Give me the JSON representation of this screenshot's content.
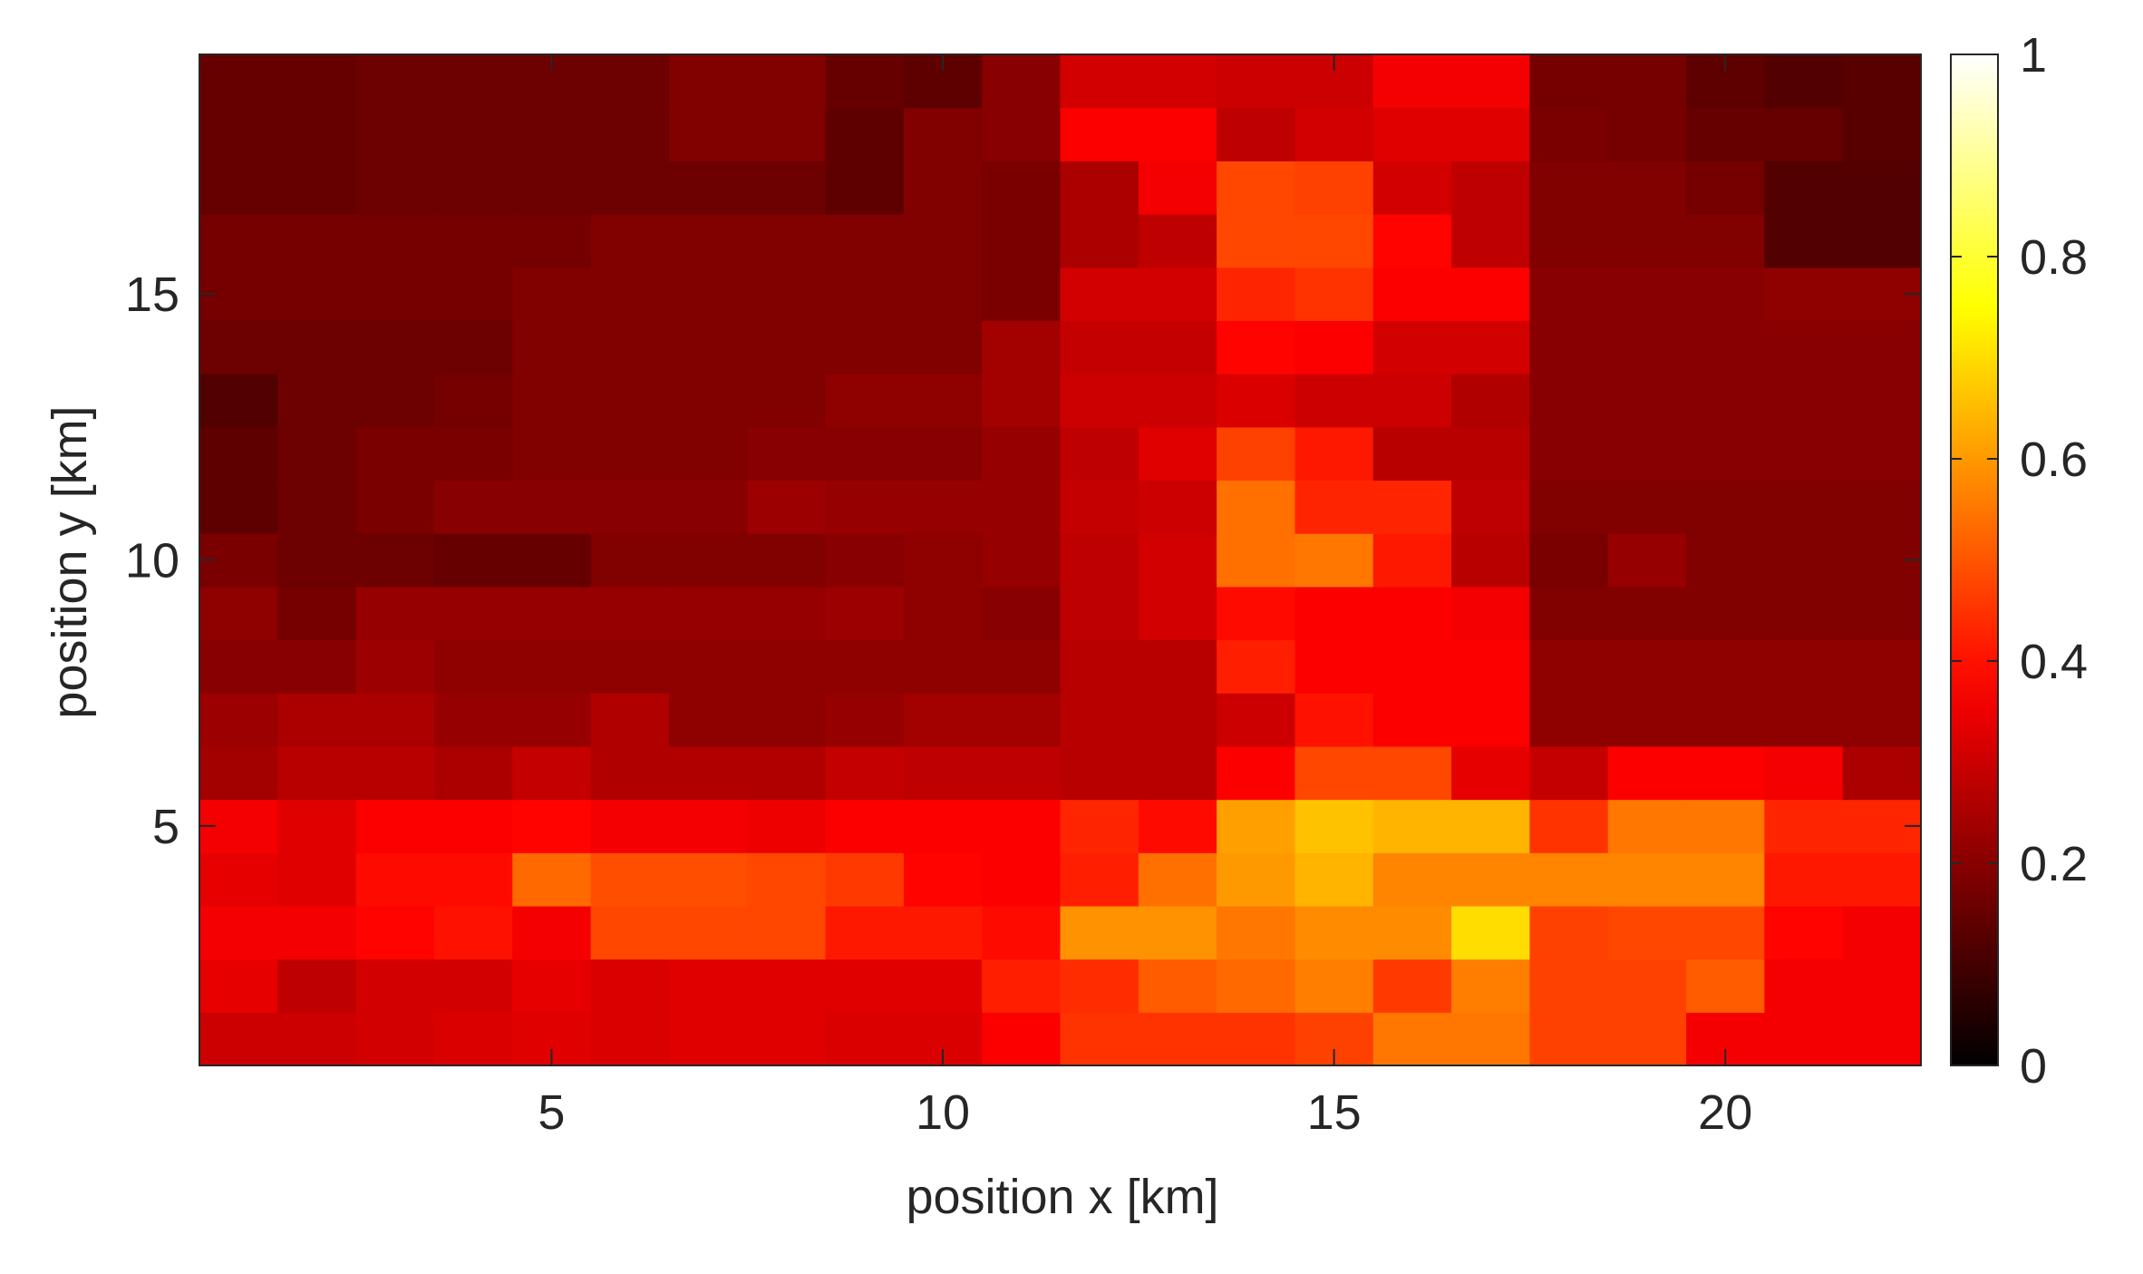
{
  "chart_data": {
    "type": "heatmap",
    "title": "",
    "xlabel": "position x [km]",
    "ylabel": "position y [km]",
    "x": [
      1,
      2,
      3,
      4,
      5,
      6,
      7,
      8,
      9,
      10,
      11,
      12,
      13,
      14,
      15,
      16,
      17,
      18,
      19,
      20,
      21,
      22
    ],
    "y": [
      1,
      2,
      3,
      4,
      5,
      6,
      7,
      8,
      9,
      10,
      11,
      12,
      13,
      14,
      15,
      16,
      17,
      18,
      19
    ],
    "xlim": [
      0.5,
      22.5
    ],
    "ylim": [
      0.5,
      19.5
    ],
    "xticks": [
      5,
      10,
      15,
      20
    ],
    "xtick_labels": [
      "5",
      "10",
      "15",
      "20"
    ],
    "yticks": [
      5,
      10,
      15
    ],
    "ytick_labels": [
      "5",
      "10",
      "15"
    ],
    "colormap": "hot",
    "clim": [
      0,
      1
    ],
    "colorbar": {
      "ticks": [
        0,
        0.2,
        0.4,
        0.6,
        0.8,
        1
      ],
      "tick_labels": [
        "0",
        "0.2",
        "0.4",
        "0.6",
        "0.8",
        "1"
      ]
    },
    "grid": false,
    "z": [
      [
        0.3,
        0.3,
        0.31,
        0.32,
        0.33,
        0.32,
        0.33,
        0.33,
        0.32,
        0.32,
        0.37,
        0.45,
        0.45,
        0.45,
        0.47,
        0.55,
        0.55,
        0.47,
        0.47,
        0.36,
        0.36,
        0.36
      ],
      [
        0.34,
        0.28,
        0.31,
        0.31,
        0.34,
        0.32,
        0.33,
        0.33,
        0.33,
        0.33,
        0.42,
        0.44,
        0.51,
        0.53,
        0.56,
        0.46,
        0.56,
        0.47,
        0.47,
        0.51,
        0.36,
        0.36
      ],
      [
        0.36,
        0.36,
        0.38,
        0.4,
        0.36,
        0.48,
        0.48,
        0.48,
        0.41,
        0.41,
        0.39,
        0.59,
        0.59,
        0.55,
        0.58,
        0.58,
        0.7,
        0.47,
        0.48,
        0.48,
        0.38,
        0.36
      ],
      [
        0.34,
        0.33,
        0.39,
        0.39,
        0.53,
        0.49,
        0.49,
        0.48,
        0.46,
        0.38,
        0.37,
        0.42,
        0.54,
        0.6,
        0.64,
        0.57,
        0.57,
        0.57,
        0.57,
        0.57,
        0.41,
        0.41
      ],
      [
        0.36,
        0.33,
        0.37,
        0.37,
        0.38,
        0.36,
        0.36,
        0.35,
        0.37,
        0.37,
        0.37,
        0.43,
        0.39,
        0.61,
        0.66,
        0.64,
        0.64,
        0.45,
        0.55,
        0.55,
        0.43,
        0.43
      ],
      [
        0.24,
        0.27,
        0.27,
        0.25,
        0.29,
        0.26,
        0.26,
        0.26,
        0.29,
        0.28,
        0.28,
        0.27,
        0.27,
        0.37,
        0.48,
        0.48,
        0.34,
        0.29,
        0.37,
        0.37,
        0.36,
        0.25
      ],
      [
        0.23,
        0.25,
        0.25,
        0.22,
        0.22,
        0.26,
        0.21,
        0.21,
        0.22,
        0.24,
        0.24,
        0.27,
        0.27,
        0.3,
        0.4,
        0.37,
        0.37,
        0.21,
        0.21,
        0.21,
        0.21,
        0.21
      ],
      [
        0.2,
        0.2,
        0.23,
        0.21,
        0.21,
        0.21,
        0.21,
        0.21,
        0.21,
        0.21,
        0.21,
        0.27,
        0.27,
        0.42,
        0.37,
        0.37,
        0.37,
        0.21,
        0.21,
        0.21,
        0.21,
        0.21
      ],
      [
        0.21,
        0.17,
        0.22,
        0.22,
        0.22,
        0.22,
        0.22,
        0.22,
        0.23,
        0.21,
        0.2,
        0.28,
        0.31,
        0.39,
        0.37,
        0.37,
        0.36,
        0.19,
        0.19,
        0.19,
        0.19,
        0.19
      ],
      [
        0.18,
        0.16,
        0.16,
        0.15,
        0.15,
        0.19,
        0.19,
        0.19,
        0.2,
        0.21,
        0.22,
        0.28,
        0.31,
        0.54,
        0.55,
        0.41,
        0.27,
        0.18,
        0.22,
        0.19,
        0.19,
        0.19
      ],
      [
        0.14,
        0.16,
        0.18,
        0.2,
        0.2,
        0.2,
        0.2,
        0.23,
        0.22,
        0.22,
        0.22,
        0.29,
        0.3,
        0.54,
        0.43,
        0.43,
        0.28,
        0.19,
        0.19,
        0.19,
        0.19,
        0.19
      ],
      [
        0.14,
        0.16,
        0.18,
        0.18,
        0.19,
        0.19,
        0.19,
        0.2,
        0.2,
        0.2,
        0.22,
        0.28,
        0.33,
        0.47,
        0.41,
        0.27,
        0.27,
        0.2,
        0.2,
        0.2,
        0.2,
        0.2
      ],
      [
        0.12,
        0.16,
        0.16,
        0.17,
        0.19,
        0.19,
        0.19,
        0.19,
        0.21,
        0.21,
        0.24,
        0.3,
        0.3,
        0.32,
        0.3,
        0.3,
        0.26,
        0.2,
        0.2,
        0.2,
        0.2,
        0.2
      ],
      [
        0.16,
        0.16,
        0.16,
        0.16,
        0.19,
        0.19,
        0.19,
        0.19,
        0.19,
        0.19,
        0.24,
        0.29,
        0.29,
        0.38,
        0.37,
        0.31,
        0.31,
        0.2,
        0.2,
        0.2,
        0.2,
        0.2
      ],
      [
        0.17,
        0.17,
        0.17,
        0.17,
        0.19,
        0.19,
        0.19,
        0.19,
        0.19,
        0.19,
        0.18,
        0.31,
        0.31,
        0.43,
        0.45,
        0.37,
        0.37,
        0.2,
        0.2,
        0.2,
        0.21,
        0.21
      ],
      [
        0.17,
        0.17,
        0.17,
        0.17,
        0.17,
        0.19,
        0.19,
        0.19,
        0.19,
        0.19,
        0.18,
        0.25,
        0.28,
        0.48,
        0.48,
        0.38,
        0.28,
        0.19,
        0.19,
        0.19,
        0.12,
        0.12
      ],
      [
        0.15,
        0.15,
        0.16,
        0.16,
        0.16,
        0.16,
        0.16,
        0.16,
        0.14,
        0.19,
        0.18,
        0.25,
        0.36,
        0.48,
        0.47,
        0.31,
        0.28,
        0.19,
        0.19,
        0.17,
        0.12,
        0.12
      ],
      [
        0.15,
        0.15,
        0.16,
        0.16,
        0.16,
        0.16,
        0.19,
        0.19,
        0.14,
        0.19,
        0.2,
        0.37,
        0.37,
        0.28,
        0.31,
        0.33,
        0.33,
        0.18,
        0.17,
        0.15,
        0.15,
        0.13
      ],
      [
        0.15,
        0.15,
        0.16,
        0.16,
        0.16,
        0.16,
        0.19,
        0.19,
        0.15,
        0.14,
        0.2,
        0.31,
        0.31,
        0.3,
        0.3,
        0.36,
        0.36,
        0.17,
        0.17,
        0.14,
        0.12,
        0.13
      ]
    ]
  }
}
